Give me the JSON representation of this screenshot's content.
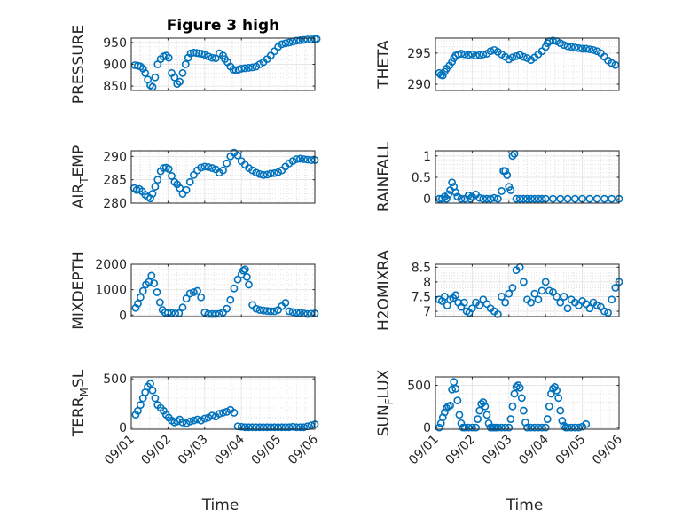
{
  "figure": {
    "title": "Figure 3 high"
  },
  "colors": {
    "marker": "#0072bd",
    "axis": "#262626",
    "grid": "#dfdfdf"
  },
  "chart_data": [
    {
      "type": "scatter",
      "panel": 0,
      "title": "Figure 3 high",
      "ylabel": "PRESSURE",
      "xlabel": "",
      "xlim": [
        0,
        5
      ],
      "ylim": [
        840,
        960
      ],
      "yticks": [
        850,
        900,
        950
      ],
      "ytick_labels": [
        "850",
        "900",
        "950"
      ],
      "xticks": [
        0,
        1,
        2,
        3,
        4,
        5
      ],
      "xtick_labels": [
        "09/01",
        "09/02",
        "09/03",
        "09/04",
        "09/05",
        "09/06"
      ],
      "show_xtick_labels": false,
      "grid": true,
      "x": [
        0.1,
        0.18,
        0.25,
        0.32,
        0.38,
        0.45,
        0.52,
        0.58,
        0.65,
        0.72,
        0.8,
        0.88,
        0.95,
        1.02,
        1.1,
        1.18,
        1.25,
        1.32,
        1.4,
        1.48,
        1.55,
        1.62,
        1.7,
        1.78,
        1.85,
        1.92,
        2.0,
        2.1,
        2.2,
        2.3,
        2.4,
        2.5,
        2.55,
        2.62,
        2.7,
        2.78,
        2.85,
        2.92,
        3.0,
        3.1,
        3.2,
        3.3,
        3.4,
        3.5,
        3.6,
        3.7,
        3.8,
        3.9,
        4.0,
        4.1,
        4.2,
        4.3,
        4.4,
        4.5,
        4.6,
        4.7,
        4.8,
        4.9,
        5.0,
        5.05
      ],
      "y": [
        898,
        897,
        895,
        890,
        880,
        865,
        852,
        848,
        870,
        900,
        912,
        918,
        920,
        915,
        880,
        870,
        855,
        860,
        880,
        900,
        915,
        925,
        927,
        926,
        925,
        924,
        922,
        918,
        915,
        914,
        925,
        920,
        912,
        905,
        895,
        888,
        886,
        888,
        890,
        891,
        892,
        893,
        895,
        900,
        905,
        912,
        920,
        930,
        940,
        946,
        948,
        950,
        952,
        954,
        955,
        956,
        957,
        957,
        958,
        958
      ]
    },
    {
      "type": "scatter",
      "panel": 1,
      "ylabel": "THETA",
      "xlabel": "",
      "xlim": [
        0,
        5
      ],
      "ylim": [
        289,
        297.4
      ],
      "yticks": [
        290,
        295
      ],
      "ytick_labels": [
        "290",
        "295"
      ],
      "xticks": [
        0,
        1,
        2,
        3,
        4,
        5
      ],
      "xtick_labels": [
        "09/01",
        "09/02",
        "09/03",
        "09/04",
        "09/05",
        "09/06"
      ],
      "show_xtick_labels": false,
      "grid": true,
      "x": [
        0.1,
        0.15,
        0.2,
        0.25,
        0.3,
        0.38,
        0.45,
        0.5,
        0.55,
        0.62,
        0.7,
        0.8,
        0.9,
        1.0,
        1.1,
        1.2,
        1.3,
        1.4,
        1.5,
        1.6,
        1.7,
        1.8,
        1.9,
        2.0,
        2.1,
        2.2,
        2.3,
        2.4,
        2.5,
        2.6,
        2.7,
        2.8,
        2.9,
        3.0,
        3.05,
        3.1,
        3.2,
        3.3,
        3.4,
        3.5,
        3.6,
        3.7,
        3.8,
        3.9,
        4.0,
        4.1,
        4.2,
        4.3,
        4.4,
        4.5,
        4.6,
        4.7,
        4.8,
        4.9
      ],
      "y": [
        291.8,
        291.5,
        291.4,
        292.0,
        292.5,
        293.0,
        293.6,
        294.2,
        294.6,
        294.8,
        294.9,
        294.8,
        294.7,
        294.8,
        294.6,
        294.7,
        294.8,
        294.9,
        295.3,
        295.5,
        295.2,
        294.8,
        294.4,
        294.0,
        294.3,
        294.5,
        294.7,
        294.4,
        294.2,
        293.9,
        294.3,
        294.8,
        295.3,
        296.0,
        296.6,
        296.9,
        297.0,
        296.9,
        296.6,
        296.3,
        296.1,
        296.0,
        295.9,
        295.8,
        295.7,
        295.7,
        295.6,
        295.5,
        295.3,
        295.0,
        294.4,
        293.8,
        293.4,
        293.1
      ]
    },
    {
      "type": "scatter",
      "panel": 2,
      "ylabel": "AIR_TEMP",
      "ylabel_display": {
        "base": "AIR",
        "sub": "T",
        "rest": "EMP"
      },
      "xlabel": "",
      "xlim": [
        0,
        5
      ],
      "ylim": [
        280,
        291.2
      ],
      "yticks": [
        280,
        285,
        290
      ],
      "ytick_labels": [
        "280",
        "285",
        "290"
      ],
      "xticks": [
        0,
        1,
        2,
        3,
        4,
        5
      ],
      "xtick_labels": [
        "09/01",
        "09/02",
        "09/03",
        "09/04",
        "09/05",
        "09/06"
      ],
      "show_xtick_labels": false,
      "grid": true,
      "x": [
        0.08,
        0.15,
        0.22,
        0.3,
        0.38,
        0.45,
        0.52,
        0.58,
        0.65,
        0.72,
        0.8,
        0.88,
        0.95,
        1.02,
        1.1,
        1.18,
        1.25,
        1.32,
        1.4,
        1.5,
        1.6,
        1.7,
        1.8,
        1.9,
        2.0,
        2.1,
        2.2,
        2.3,
        2.4,
        2.5,
        2.6,
        2.7,
        2.8,
        2.9,
        3.0,
        3.1,
        3.2,
        3.3,
        3.4,
        3.5,
        3.6,
        3.7,
        3.8,
        3.9,
        4.0,
        4.1,
        4.2,
        4.3,
        4.4,
        4.5,
        4.6,
        4.7,
        4.8,
        4.9,
        5.0
      ],
      "y": [
        283.2,
        282.8,
        283.0,
        282.5,
        281.8,
        281.3,
        281.0,
        282.0,
        283.5,
        285.0,
        286.8,
        287.5,
        287.6,
        287.3,
        285.8,
        284.5,
        284.0,
        283.2,
        282.0,
        282.8,
        284.5,
        286.0,
        287.0,
        287.6,
        287.8,
        287.7,
        287.5,
        287.2,
        286.5,
        287.0,
        288.5,
        290.0,
        290.8,
        290.2,
        289.0,
        288.2,
        287.5,
        287.0,
        286.5,
        286.2,
        286.0,
        286.1,
        286.3,
        286.4,
        286.6,
        287.0,
        287.8,
        288.5,
        289.0,
        289.4,
        289.5,
        289.4,
        289.3,
        289.2,
        289.2
      ]
    },
    {
      "type": "scatter",
      "panel": 3,
      "ylabel": "RAINFALL",
      "xlabel": "",
      "xlim": [
        0,
        5
      ],
      "ylim": [
        -0.1,
        1.12
      ],
      "yticks": [
        0,
        0.5,
        1
      ],
      "ytick_labels": [
        "0",
        "0.5",
        "1"
      ],
      "xticks": [
        0,
        1,
        2,
        3,
        4,
        5
      ],
      "xtick_labels": [
        "09/01",
        "09/02",
        "09/03",
        "09/04",
        "09/05",
        "09/06"
      ],
      "show_xtick_labels": false,
      "grid": true,
      "x": [
        0.1,
        0.18,
        0.25,
        0.3,
        0.35,
        0.4,
        0.45,
        0.5,
        0.55,
        0.6,
        0.7,
        0.8,
        0.9,
        0.95,
        1.0,
        1.1,
        1.2,
        1.3,
        1.4,
        1.5,
        1.6,
        1.7,
        1.8,
        1.85,
        1.9,
        1.95,
        2.0,
        2.05,
        2.1,
        2.15,
        2.2,
        2.3,
        2.4,
        2.5,
        2.6,
        2.7,
        2.8,
        2.9,
        3.0,
        3.2,
        3.4,
        3.6,
        3.8,
        4.0,
        4.2,
        4.4,
        4.6,
        4.8,
        5.0
      ],
      "y": [
        0,
        0,
        0.05,
        0,
        0.1,
        0.2,
        0.38,
        0.28,
        0.15,
        0.05,
        0,
        0,
        0.08,
        0,
        0.05,
        0.1,
        0.02,
        0,
        0,
        0,
        0.02,
        0,
        0.18,
        0.65,
        0.65,
        0.55,
        0.28,
        0.2,
        1.0,
        1.05,
        0,
        0,
        0,
        0,
        0,
        0,
        0,
        0,
        0,
        0,
        0,
        0,
        0,
        0,
        0,
        0,
        0,
        0,
        0
      ]
    },
    {
      "type": "scatter",
      "panel": 4,
      "ylabel": "MIXDEPTH",
      "xlabel": "",
      "xlim": [
        0,
        5
      ],
      "ylim": [
        -60,
        2000
      ],
      "yticks": [
        0,
        1000,
        2000
      ],
      "ytick_labels": [
        "0",
        "1000",
        "2000"
      ],
      "xticks": [
        0,
        1,
        2,
        3,
        4,
        5
      ],
      "xtick_labels": [
        "09/01",
        "09/02",
        "09/03",
        "09/04",
        "09/05",
        "09/06"
      ],
      "show_xtick_labels": false,
      "grid": true,
      "x": [
        0.12,
        0.18,
        0.25,
        0.32,
        0.4,
        0.48,
        0.55,
        0.62,
        0.7,
        0.78,
        0.85,
        0.92,
        1.0,
        1.1,
        1.2,
        1.3,
        1.4,
        1.5,
        1.6,
        1.7,
        1.8,
        1.9,
        2.0,
        2.1,
        2.2,
        2.3,
        2.4,
        2.5,
        2.6,
        2.7,
        2.8,
        2.9,
        3.0,
        3.05,
        3.1,
        3.15,
        3.2,
        3.3,
        3.4,
        3.5,
        3.6,
        3.7,
        3.8,
        3.9,
        4.0,
        4.1,
        4.2,
        4.3,
        4.4,
        4.5,
        4.6,
        4.7,
        4.8,
        4.9,
        5.0
      ],
      "y": [
        280,
        450,
        700,
        950,
        1200,
        1300,
        1550,
        1250,
        900,
        500,
        200,
        100,
        90,
        80,
        60,
        70,
        300,
        650,
        850,
        900,
        950,
        700,
        100,
        40,
        40,
        40,
        50,
        100,
        250,
        600,
        1050,
        1400,
        1600,
        1750,
        1800,
        1500,
        1200,
        400,
        250,
        200,
        180,
        160,
        150,
        150,
        200,
        350,
        480,
        150,
        120,
        100,
        80,
        60,
        40,
        50,
        60
      ]
    },
    {
      "type": "scatter",
      "panel": 5,
      "ylabel": "H2OMIXRA",
      "xlabel": "",
      "xlim": [
        0,
        5
      ],
      "ylim": [
        6.82,
        8.6
      ],
      "yticks": [
        7,
        7.5,
        8,
        8.5
      ],
      "ytick_labels": [
        "7",
        "7.5",
        "8",
        "8.5"
      ],
      "xticks": [
        0,
        1,
        2,
        3,
        4,
        5
      ],
      "xtick_labels": [
        "09/01",
        "09/02",
        "09/03",
        "09/04",
        "09/05",
        "09/06"
      ],
      "show_xtick_labels": false,
      "grid": true,
      "x": [
        0.1,
        0.18,
        0.25,
        0.32,
        0.4,
        0.48,
        0.55,
        0.62,
        0.7,
        0.78,
        0.85,
        0.92,
        1.0,
        1.1,
        1.2,
        1.3,
        1.4,
        1.5,
        1.6,
        1.7,
        1.8,
        1.9,
        2.0,
        2.1,
        2.2,
        2.3,
        2.4,
        2.5,
        2.6,
        2.7,
        2.8,
        2.9,
        3.0,
        3.1,
        3.2,
        3.3,
        3.4,
        3.5,
        3.6,
        3.7,
        3.8,
        3.9,
        4.0,
        4.1,
        4.2,
        4.3,
        4.4,
        4.5,
        4.6,
        4.7,
        4.8,
        4.9,
        5.0
      ],
      "y": [
        7.4,
        7.35,
        7.5,
        7.2,
        7.4,
        7.45,
        7.55,
        7.3,
        7.15,
        7.3,
        7.0,
        6.95,
        7.1,
        7.3,
        7.2,
        7.4,
        7.25,
        7.1,
        7.0,
        6.9,
        7.5,
        7.3,
        7.6,
        7.8,
        8.4,
        8.5,
        8.0,
        7.4,
        7.3,
        7.6,
        7.4,
        7.7,
        8.0,
        7.7,
        7.65,
        7.5,
        7.3,
        7.5,
        7.1,
        7.4,
        7.3,
        7.2,
        7.35,
        7.25,
        7.1,
        7.3,
        7.2,
        7.15,
        7.0,
        6.95,
        7.4,
        7.8,
        8.0
      ]
    },
    {
      "type": "scatter",
      "panel": 6,
      "ylabel": "TERR_MSL",
      "ylabel_display": {
        "base": "TERR",
        "sub": "M",
        "rest": "SL"
      },
      "xlabel": "Time",
      "xlim": [
        0,
        5
      ],
      "ylim": [
        -20,
        520
      ],
      "yticks": [
        0,
        500
      ],
      "ytick_labels": [
        "0",
        "500"
      ],
      "xticks": [
        0,
        1,
        2,
        3,
        4,
        5
      ],
      "xtick_labels": [
        "09/01",
        "09/02",
        "09/03",
        "09/04",
        "09/05",
        "09/06"
      ],
      "show_xtick_labels": true,
      "grid": true,
      "x": [
        0.12,
        0.18,
        0.25,
        0.32,
        0.38,
        0.45,
        0.52,
        0.58,
        0.65,
        0.72,
        0.8,
        0.88,
        0.95,
        1.02,
        1.1,
        1.18,
        1.25,
        1.32,
        1.4,
        1.5,
        1.6,
        1.7,
        1.8,
        1.9,
        2.0,
        2.1,
        2.2,
        2.3,
        2.4,
        2.5,
        2.6,
        2.7,
        2.8,
        2.9,
        3.0,
        3.1,
        3.2,
        3.3,
        3.4,
        3.5,
        3.6,
        3.7,
        3.8,
        3.9,
        4.0,
        4.1,
        4.2,
        4.3,
        4.4,
        4.5,
        4.6,
        4.7,
        4.8,
        4.9,
        5.0
      ],
      "y": [
        130,
        170,
        230,
        300,
        360,
        420,
        450,
        380,
        300,
        230,
        200,
        170,
        130,
        100,
        70,
        50,
        60,
        80,
        50,
        40,
        60,
        70,
        80,
        70,
        90,
        100,
        120,
        110,
        140,
        150,
        160,
        180,
        150,
        10,
        5,
        0,
        0,
        0,
        0,
        0,
        0,
        0,
        0,
        0,
        0,
        0,
        0,
        0,
        5,
        0,
        0,
        0,
        10,
        20,
        30
      ]
    },
    {
      "type": "scatter",
      "panel": 7,
      "ylabel": "SUN_FLUX",
      "ylabel_display": {
        "base": "SUN",
        "sub": "F",
        "rest": "LUX"
      },
      "xlabel": "Time",
      "xlim": [
        0,
        5
      ],
      "ylim": [
        -20,
        600
      ],
      "yticks": [
        0,
        500
      ],
      "ytick_labels": [
        "0",
        "500"
      ],
      "xticks": [
        0,
        1,
        2,
        3,
        4,
        5
      ],
      "xtick_labels": [
        "09/01",
        "09/02",
        "09/03",
        "09/04",
        "09/05",
        "09/06"
      ],
      "show_xtick_labels": true,
      "grid": true,
      "x": [
        0.1,
        0.15,
        0.2,
        0.25,
        0.3,
        0.35,
        0.4,
        0.45,
        0.5,
        0.55,
        0.6,
        0.65,
        0.7,
        0.75,
        0.8,
        0.9,
        1.0,
        1.1,
        1.15,
        1.2,
        1.25,
        1.3,
        1.35,
        1.4,
        1.45,
        1.5,
        1.55,
        1.6,
        1.65,
        1.7,
        1.8,
        1.9,
        2.0,
        2.05,
        2.1,
        2.15,
        2.2,
        2.25,
        2.3,
        2.35,
        2.4,
        2.45,
        2.5,
        2.6,
        2.7,
        2.8,
        2.9,
        3.0,
        3.05,
        3.1,
        3.15,
        3.2,
        3.25,
        3.3,
        3.35,
        3.4,
        3.45,
        3.5,
        3.55,
        3.6,
        3.7,
        3.8,
        3.9,
        4.0,
        4.1
      ],
      "y": [
        0,
        50,
        120,
        180,
        230,
        250,
        260,
        450,
        540,
        460,
        320,
        150,
        50,
        0,
        0,
        0,
        0,
        0,
        100,
        200,
        280,
        300,
        250,
        150,
        50,
        0,
        0,
        0,
        0,
        0,
        0,
        0,
        0,
        100,
        250,
        400,
        480,
        500,
        470,
        350,
        200,
        60,
        0,
        0,
        0,
        0,
        0,
        0,
        100,
        250,
        400,
        460,
        480,
        440,
        350,
        200,
        80,
        20,
        0,
        0,
        0,
        0,
        0,
        10,
        40
      ]
    }
  ]
}
